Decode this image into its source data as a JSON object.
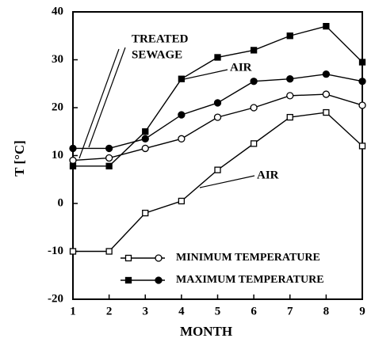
{
  "chart_data": {
    "type": "line",
    "x": [
      1,
      2,
      3,
      4,
      5,
      6,
      7,
      8,
      9
    ],
    "xlabel": "MONTH",
    "ylabel": "T [°C]",
    "xlim": [
      1,
      9
    ],
    "ylim": [
      -20,
      40
    ],
    "xticks": [
      1,
      2,
      3,
      4,
      5,
      6,
      7,
      8,
      9
    ],
    "yticks": [
      -20,
      -10,
      0,
      10,
      20,
      30,
      40
    ],
    "color": "#000000",
    "series": [
      {
        "marker": "square",
        "filled": false,
        "values": [
          -10,
          -10,
          -2,
          0.5,
          7,
          12.5,
          18,
          19,
          12
        ]
      },
      {
        "marker": "circle",
        "filled": false,
        "values": [
          9,
          9.5,
          11.5,
          13.5,
          18,
          20,
          22.5,
          22.8,
          20.5
        ]
      },
      {
        "marker": "square",
        "filled": true,
        "values": [
          7.8,
          7.8,
          15,
          26,
          30.5,
          32,
          35,
          37,
          29.5
        ]
      },
      {
        "marker": "circle",
        "filled": true,
        "values": [
          11.5,
          11.5,
          13.5,
          18.5,
          21,
          25.5,
          26,
          27,
          25.5
        ]
      }
    ],
    "legend": [
      {
        "label": "MINIMUM TEMPERATURE",
        "filled": false
      },
      {
        "label": "MAXIMUM TEMPERATURE",
        "filled": true
      }
    ],
    "annotations": [
      "TREATED",
      "SEWAGE",
      "AIR",
      "AIR"
    ]
  }
}
